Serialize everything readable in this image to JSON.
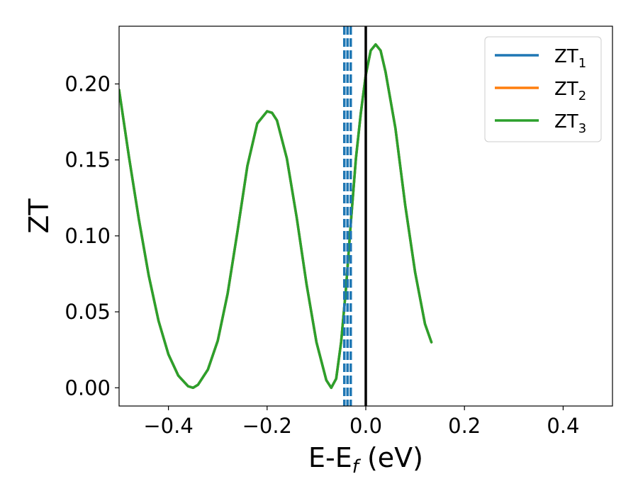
{
  "chart_data": {
    "type": "line",
    "xlabel": "E-E",
    "xlabel_subscript": "f",
    "xlabel_unit": " (eV)",
    "ylabel": "ZT",
    "xlim": [
      -0.5,
      0.5
    ],
    "ylim": [
      -0.012,
      0.238
    ],
    "xticks": [
      -0.4,
      -0.2,
      0.0,
      0.2,
      0.4
    ],
    "xtick_labels": [
      "−0.4",
      "−0.2",
      "0.0",
      "0.2",
      "0.4"
    ],
    "yticks": [
      0.0,
      0.05,
      0.1,
      0.15,
      0.2
    ],
    "ytick_labels": [
      "0.00",
      "0.05",
      "0.10",
      "0.15",
      "0.20"
    ],
    "legend_position": "top-right",
    "series": [
      {
        "name": "ZT",
        "subscript": "1",
        "color": "#1f77b4",
        "x": [
          -0.5,
          -0.48,
          -0.46,
          -0.44,
          -0.42,
          -0.4,
          -0.38,
          -0.36,
          -0.35,
          -0.34,
          -0.32,
          -0.3,
          -0.28,
          -0.26,
          -0.24,
          -0.22,
          -0.2,
          -0.19,
          -0.18,
          -0.16,
          -0.14,
          -0.12,
          -0.1,
          -0.08,
          -0.07,
          -0.06,
          -0.05,
          -0.04,
          -0.03,
          -0.02,
          -0.01,
          0.0,
          0.01,
          0.02,
          0.03,
          0.04,
          0.06,
          0.08,
          0.1,
          0.12,
          0.133
        ],
        "y": [
          0.196,
          0.152,
          0.111,
          0.074,
          0.044,
          0.022,
          0.008,
          0.001,
          0.0,
          0.002,
          0.012,
          0.031,
          0.062,
          0.103,
          0.146,
          0.174,
          0.182,
          0.181,
          0.176,
          0.151,
          0.112,
          0.068,
          0.03,
          0.005,
          0.0,
          0.006,
          0.03,
          0.066,
          0.11,
          0.151,
          0.181,
          0.206,
          0.222,
          0.226,
          0.222,
          0.208,
          0.171,
          0.12,
          0.076,
          0.042,
          0.03
        ]
      },
      {
        "name": "ZT",
        "subscript": "2",
        "color": "#ff7f0e",
        "x": [
          -0.5,
          -0.48,
          -0.46,
          -0.44,
          -0.42,
          -0.4,
          -0.38,
          -0.36,
          -0.35,
          -0.34,
          -0.32,
          -0.3,
          -0.28,
          -0.26,
          -0.24,
          -0.22,
          -0.2,
          -0.19,
          -0.18,
          -0.16,
          -0.14,
          -0.12,
          -0.1,
          -0.08,
          -0.07,
          -0.06,
          -0.05,
          -0.04,
          -0.03,
          -0.02,
          -0.01,
          0.0,
          0.01,
          0.02,
          0.03,
          0.04,
          0.06,
          0.08,
          0.1,
          0.12,
          0.133
        ],
        "y": [
          0.196,
          0.152,
          0.111,
          0.074,
          0.044,
          0.022,
          0.008,
          0.001,
          0.0,
          0.002,
          0.012,
          0.031,
          0.062,
          0.103,
          0.146,
          0.174,
          0.182,
          0.181,
          0.176,
          0.151,
          0.112,
          0.068,
          0.03,
          0.005,
          0.0,
          0.006,
          0.03,
          0.066,
          0.11,
          0.151,
          0.181,
          0.206,
          0.222,
          0.226,
          0.222,
          0.208,
          0.171,
          0.12,
          0.076,
          0.042,
          0.03
        ]
      },
      {
        "name": "ZT",
        "subscript": "3",
        "color": "#2ca02c",
        "x": [
          -0.5,
          -0.48,
          -0.46,
          -0.44,
          -0.42,
          -0.4,
          -0.38,
          -0.36,
          -0.35,
          -0.34,
          -0.32,
          -0.3,
          -0.28,
          -0.26,
          -0.24,
          -0.22,
          -0.2,
          -0.19,
          -0.18,
          -0.16,
          -0.14,
          -0.12,
          -0.1,
          -0.08,
          -0.07,
          -0.06,
          -0.05,
          -0.04,
          -0.03,
          -0.02,
          -0.01,
          0.0,
          0.01,
          0.02,
          0.03,
          0.04,
          0.06,
          0.08,
          0.1,
          0.12,
          0.133
        ],
        "y": [
          0.196,
          0.152,
          0.111,
          0.074,
          0.044,
          0.022,
          0.008,
          0.001,
          0.0,
          0.002,
          0.012,
          0.031,
          0.062,
          0.103,
          0.146,
          0.174,
          0.182,
          0.181,
          0.176,
          0.151,
          0.112,
          0.068,
          0.03,
          0.005,
          0.0,
          0.006,
          0.03,
          0.066,
          0.11,
          0.151,
          0.181,
          0.206,
          0.222,
          0.226,
          0.222,
          0.208,
          0.171,
          0.12,
          0.076,
          0.042,
          0.03
        ]
      }
    ],
    "vlines": [
      {
        "x": -0.0435,
        "color": "#1f77b4",
        "style": "dashed"
      },
      {
        "x": -0.037,
        "color": "#1f77b4",
        "style": "dashed"
      },
      {
        "x": -0.0305,
        "color": "#1f77b4",
        "style": "dashed"
      },
      {
        "x": 0.0,
        "color": "#000000",
        "style": "solid"
      }
    ]
  }
}
